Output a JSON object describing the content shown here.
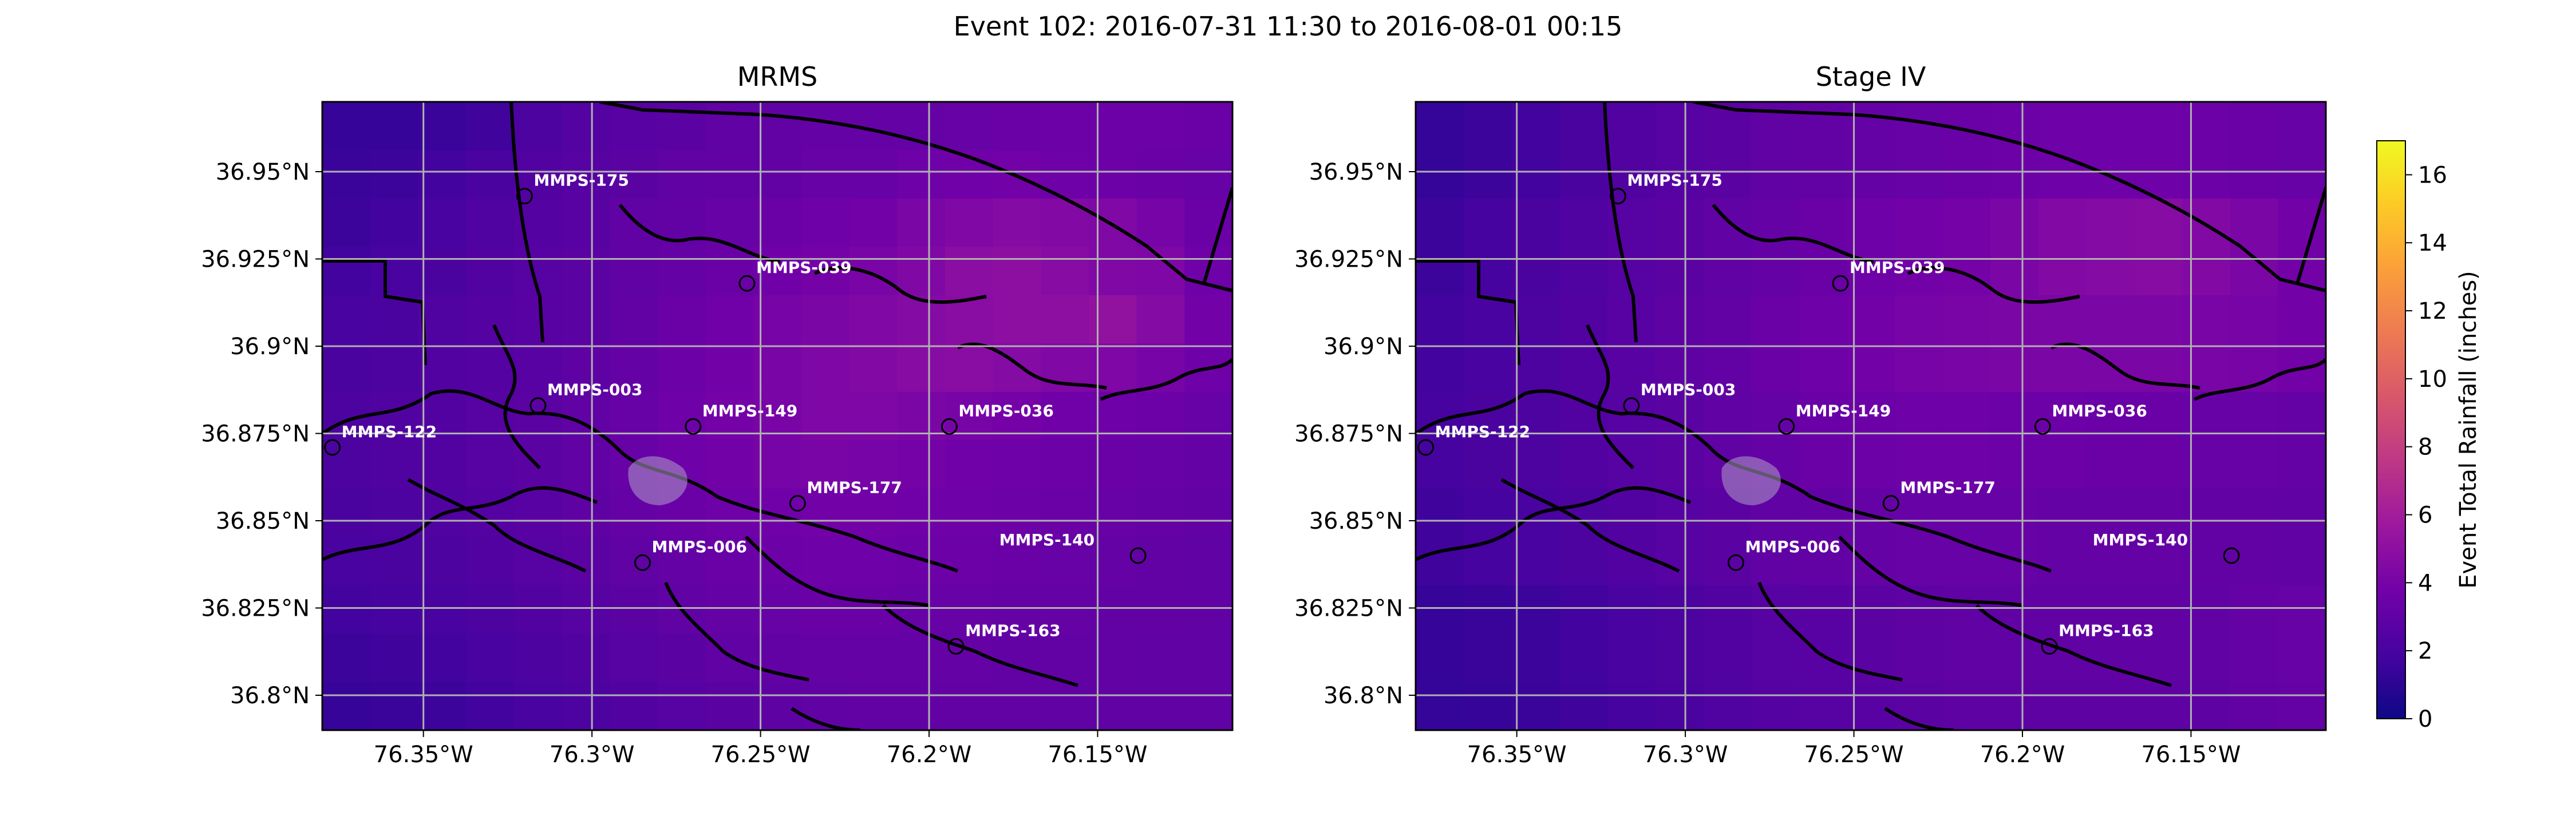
{
  "figure": {
    "suptitle": "Event 102: 2016-07-31 11:30 to 2016-08-01 00:15"
  },
  "panels": [
    {
      "title": "MRMS",
      "product": "mrms"
    },
    {
      "title": "Stage IV",
      "product": "stageiv"
    }
  ],
  "axes": {
    "x_ticks": [
      {
        "value": -76.35,
        "label": "76.35°W"
      },
      {
        "value": -76.3,
        "label": "76.3°W"
      },
      {
        "value": -76.25,
        "label": "76.25°W"
      },
      {
        "value": -76.2,
        "label": "76.2°W"
      },
      {
        "value": -76.15,
        "label": "76.15°W"
      }
    ],
    "y_ticks": [
      {
        "value": 36.95,
        "label": "36.95°N"
      },
      {
        "value": 36.925,
        "label": "36.925°N"
      },
      {
        "value": 36.9,
        "label": "36.9°N"
      },
      {
        "value": 36.875,
        "label": "36.875°N"
      },
      {
        "value": 36.85,
        "label": "36.85°N"
      },
      {
        "value": 36.825,
        "label": "36.825°N"
      },
      {
        "value": 36.8,
        "label": "36.8°N"
      }
    ],
    "lon_range": [
      -76.38,
      -76.11
    ],
    "lat_range": [
      36.79,
      36.97
    ],
    "grid": true
  },
  "colorbar": {
    "label": "Event Total Rainfall (inches)",
    "ticks": [
      0,
      2,
      4,
      6,
      8,
      10,
      12,
      14,
      16
    ],
    "range": [
      0,
      17
    ],
    "colormap": "plasma",
    "colors": [
      "#0d0887",
      "#46039f",
      "#7201a8",
      "#9c179e",
      "#bd3786",
      "#d8576b",
      "#ed7953",
      "#fb9f3a",
      "#fdca26",
      "#f0f921"
    ]
  },
  "stations": [
    {
      "id": "MMPS-175",
      "lon": -76.32,
      "lat": 36.943
    },
    {
      "id": "MMPS-039",
      "lon": -76.254,
      "lat": 36.918
    },
    {
      "id": "MMPS-003",
      "lon": -76.316,
      "lat": 36.883
    },
    {
      "id": "MMPS-149",
      "lon": -76.27,
      "lat": 36.877
    },
    {
      "id": "MMPS-036",
      "lon": -76.194,
      "lat": 36.877
    },
    {
      "id": "MMPS-122",
      "lon": -76.377,
      "lat": 36.871
    },
    {
      "id": "MMPS-177",
      "lon": -76.239,
      "lat": 36.855
    },
    {
      "id": "MMPS-006",
      "lon": -76.285,
      "lat": 36.838
    },
    {
      "id": "MMPS-140",
      "lon": -76.138,
      "lat": 36.84
    },
    {
      "id": "MMPS-163",
      "lon": -76.192,
      "lat": 36.814
    }
  ],
  "rainfall": {
    "mrms": [
      [
        1.4,
        1.4,
        1.5,
        1.7,
        2.2,
        2.5,
        2.7,
        2.8,
        3.0,
        3.1,
        3.2,
        3.2,
        3.2,
        3.3,
        3.4,
        3.5,
        3.5,
        3.5,
        3.4
      ],
      [
        1.5,
        1.6,
        1.8,
        2.1,
        2.4,
        2.6,
        2.8,
        3.0,
        3.1,
        3.1,
        3.3,
        3.3,
        3.6,
        3.7,
        3.8,
        3.6,
        3.5,
        3.4,
        3.3
      ],
      [
        1.6,
        1.8,
        2.0,
        2.3,
        2.5,
        2.7,
        3.0,
        3.1,
        3.3,
        3.4,
        3.6,
        3.8,
        4.2,
        4.4,
        4.6,
        4.5,
        4.4,
        4.0,
        3.4
      ],
      [
        1.8,
        2.0,
        2.1,
        2.4,
        2.6,
        2.8,
        3.0,
        3.2,
        3.4,
        3.7,
        3.9,
        4.1,
        4.4,
        4.9,
        5.0,
        4.7,
        4.4,
        4.3,
        3.6
      ],
      [
        2.0,
        2.1,
        2.3,
        2.5,
        2.7,
        2.8,
        3.1,
        3.4,
        3.7,
        4.0,
        4.2,
        4.4,
        4.6,
        4.8,
        5.0,
        5.0,
        5.2,
        4.6,
        3.8
      ],
      [
        2.1,
        2.2,
        2.4,
        2.5,
        2.7,
        2.9,
        3.2,
        3.5,
        3.8,
        4.1,
        4.3,
        4.5,
        4.7,
        4.8,
        4.6,
        4.4,
        4.3,
        4.0,
        3.6
      ],
      [
        2.2,
        2.3,
        2.4,
        2.6,
        2.8,
        3.0,
        3.3,
        3.6,
        3.9,
        4.1,
        4.3,
        4.3,
        4.2,
        4.0,
        3.9,
        3.7,
        3.6,
        3.5,
        3.3
      ],
      [
        2.2,
        2.3,
        2.4,
        2.6,
        2.8,
        3.0,
        3.3,
        3.6,
        3.8,
        4.0,
        4.1,
        4.0,
        3.9,
        3.7,
        3.6,
        3.5,
        3.4,
        3.3,
        3.2
      ],
      [
        2.1,
        2.2,
        2.3,
        2.5,
        2.7,
        2.9,
        3.2,
        3.4,
        3.6,
        3.7,
        3.8,
        3.8,
        3.7,
        3.6,
        3.5,
        3.4,
        3.3,
        3.2,
        3.1
      ],
      [
        2.0,
        2.1,
        2.2,
        2.4,
        2.6,
        2.8,
        3.0,
        3.2,
        3.4,
        3.5,
        3.6,
        3.6,
        3.5,
        3.5,
        3.4,
        3.3,
        3.2,
        3.1,
        3.0
      ],
      [
        1.8,
        1.9,
        2.0,
        2.2,
        2.4,
        2.6,
        2.8,
        3.0,
        3.2,
        3.3,
        3.4,
        3.4,
        3.3,
        3.3,
        3.2,
        3.2,
        3.1,
        3.1,
        3.0
      ],
      [
        1.6,
        1.7,
        1.8,
        2.0,
        2.2,
        2.4,
        2.6,
        2.8,
        3.0,
        3.1,
        3.2,
        3.2,
        3.2,
        3.2,
        3.1,
        3.1,
        3.1,
        3.0,
        3.0
      ],
      [
        1.4,
        1.5,
        1.6,
        1.8,
        2.0,
        2.2,
        2.4,
        2.6,
        2.8,
        2.9,
        3.0,
        3.1,
        3.1,
        3.1,
        3.1,
        3.0,
        3.0,
        3.0,
        3.0
      ]
    ],
    "stageiv": [
      [
        1.3,
        1.6,
        1.8,
        2.1,
        2.4,
        2.6,
        2.8,
        3.0,
        3.1,
        3.2,
        3.3,
        3.4,
        3.5,
        3.6,
        3.6,
        3.6,
        3.5,
        3.4,
        3.3
      ],
      [
        1.3,
        1.6,
        1.8,
        2.1,
        2.4,
        2.6,
        2.8,
        3.0,
        3.1,
        3.2,
        3.3,
        3.4,
        3.5,
        3.6,
        3.6,
        3.6,
        3.5,
        3.4,
        3.3
      ],
      [
        1.6,
        1.9,
        2.1,
        2.3,
        2.6,
        2.8,
        3.0,
        3.2,
        3.4,
        3.6,
        3.8,
        3.9,
        4.2,
        4.5,
        4.6,
        4.7,
        4.5,
        4.2,
        3.8
      ],
      [
        1.6,
        1.9,
        2.1,
        2.3,
        2.6,
        2.8,
        3.0,
        3.2,
        3.4,
        3.6,
        3.8,
        3.9,
        4.2,
        4.5,
        4.6,
        4.7,
        4.5,
        4.2,
        3.8
      ],
      [
        1.8,
        2.0,
        2.2,
        2.4,
        2.7,
        2.9,
        3.1,
        3.4,
        3.6,
        3.8,
        4.0,
        4.1,
        4.2,
        4.2,
        4.2,
        4.2,
        4.1,
        4.0,
        3.8
      ],
      [
        1.8,
        2.0,
        2.2,
        2.4,
        2.7,
        2.9,
        3.1,
        3.4,
        3.6,
        3.8,
        4.0,
        4.1,
        4.2,
        4.2,
        4.2,
        4.2,
        4.1,
        4.0,
        3.8
      ],
      [
        1.9,
        2.1,
        2.2,
        2.4,
        2.6,
        2.8,
        3.0,
        3.2,
        3.4,
        3.5,
        3.6,
        3.6,
        3.5,
        3.5,
        3.4,
        3.4,
        3.3,
        3.3,
        3.2
      ],
      [
        1.9,
        2.1,
        2.2,
        2.4,
        2.6,
        2.8,
        3.0,
        3.2,
        3.4,
        3.5,
        3.6,
        3.6,
        3.5,
        3.5,
        3.4,
        3.4,
        3.3,
        3.3,
        3.2
      ],
      [
        1.7,
        1.9,
        2.0,
        2.2,
        2.4,
        2.6,
        2.8,
        3.0,
        3.1,
        3.2,
        3.3,
        3.3,
        3.3,
        3.2,
        3.2,
        3.2,
        3.1,
        3.1,
        3.0
      ],
      [
        1.7,
        1.9,
        2.0,
        2.2,
        2.4,
        2.6,
        2.8,
        3.0,
        3.1,
        3.2,
        3.3,
        3.3,
        3.3,
        3.2,
        3.2,
        3.2,
        3.1,
        3.1,
        3.0
      ],
      [
        1.4,
        1.5,
        1.6,
        1.8,
        2.0,
        2.2,
        2.4,
        2.6,
        2.7,
        2.8,
        2.9,
        3.0,
        3.0,
        3.0,
        3.0,
        3.0,
        3.0,
        3.2,
        3.3
      ],
      [
        1.4,
        1.5,
        1.6,
        1.8,
        2.0,
        2.2,
        2.4,
        2.6,
        2.7,
        2.8,
        2.9,
        3.0,
        3.0,
        3.0,
        3.0,
        3.0,
        3.0,
        3.2,
        3.3
      ],
      [
        1.3,
        1.4,
        1.5,
        1.7,
        1.9,
        2.1,
        2.3,
        2.5,
        2.6,
        2.7,
        2.8,
        2.9,
        2.9,
        2.9,
        2.9,
        2.9,
        2.9,
        3.1,
        3.2
      ]
    ]
  }
}
